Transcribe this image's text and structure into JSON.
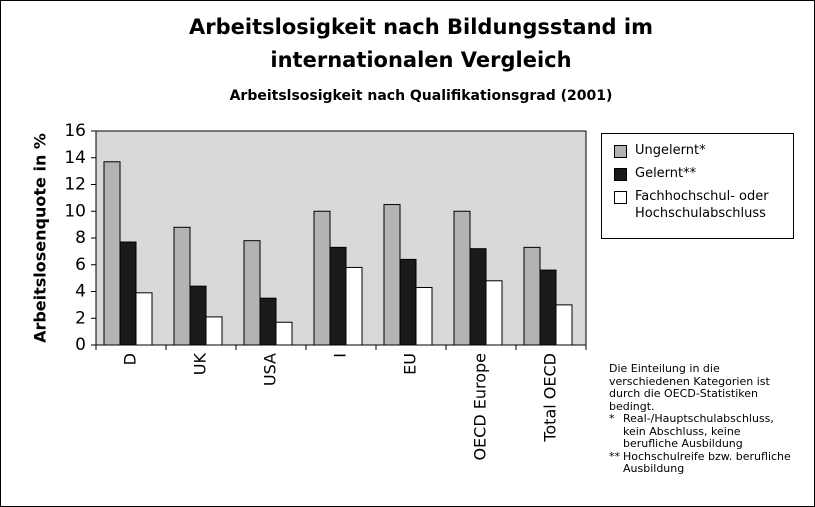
{
  "chart_data": {
    "type": "bar",
    "title": [
      "Arbeitslosigkeit nach Bildungsstand im",
      "internationalen Vergleich"
    ],
    "subtitle": "Arbeitslsosigkeit nach Qualifikationsgrad (2001)",
    "y_label": "Arbeitslosenquote in %",
    "categories": [
      "D",
      "UK",
      "USA",
      "I",
      "EU",
      "OECD Europe",
      "Total OECD"
    ],
    "series": [
      {
        "name": "Ungelernt*",
        "color": "#b3b3b3",
        "values": [
          13.7,
          8.8,
          7.8,
          10.0,
          10.5,
          10.0,
          7.3
        ]
      },
      {
        "name": "Gelernt**",
        "color": "#1a1a1a",
        "values": [
          7.7,
          4.4,
          3.5,
          7.3,
          6.4,
          7.2,
          5.6
        ]
      },
      {
        "name": "Fachhochschul- oder Hochschulabschluss",
        "color": "#ffffff",
        "values": [
          3.9,
          2.1,
          1.7,
          5.8,
          4.3,
          4.8,
          3.0
        ]
      }
    ],
    "ylim": [
      0,
      16
    ],
    "yticks": [
      0,
      2,
      4,
      6,
      8,
      10,
      12,
      14,
      16
    ],
    "grid": false,
    "plot_background": "#d9d9d9",
    "note": "Die Einteilung in die verschiedenen Kategorien ist durch die OECD-Statistiken bedingt.",
    "footnotes": [
      {
        "marker": "*",
        "text": "Real-/Hauptschulabschluss, kein Abschluss, keine berufliche Ausbildung"
      },
      {
        "marker": "**",
        "text": "Hochschulreife bzw. berufliche Ausbildung"
      }
    ]
  }
}
